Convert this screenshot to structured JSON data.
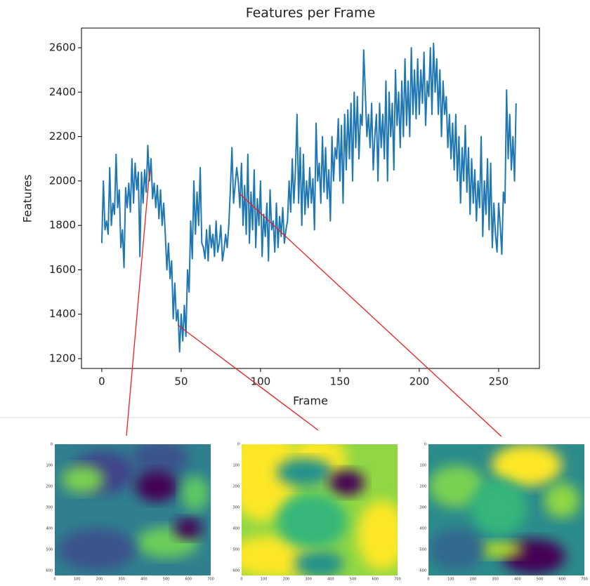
{
  "chart_data": {
    "type": "line",
    "title": "Features per Frame",
    "x_label": "Frame",
    "y_label": "Features",
    "color": "#1f77b4",
    "xlim": [
      -12.8,
      275.7
    ],
    "ylim": [
      1155.8,
      2688.5
    ],
    "xticks": [
      0,
      50,
      100,
      150,
      200,
      250
    ],
    "yticks": [
      1200,
      1400,
      1600,
      1800,
      2000,
      2200,
      2400,
      2600
    ],
    "values": [
      1720,
      2000,
      1780,
      1820,
      1760,
      2060,
      1800,
      1900,
      1850,
      2120,
      1880,
      1960,
      1700,
      1780,
      1610,
      1970,
      1880,
      1990,
      1860,
      2100,
      1900,
      2080,
      1960,
      2040,
      1660,
      2040,
      1900,
      2050,
      1950,
      2160,
      2000,
      2100,
      1920,
      1990,
      1880,
      1980,
      1830,
      1960,
      1800,
      1900,
      1760,
      1600,
      1720,
      1560,
      1640,
      1380,
      1540,
      1370,
      1420,
      1230,
      1400,
      1280,
      1440,
      1300,
      1600,
      1500,
      1820,
      1650,
      2000,
      1760,
      1950,
      1800,
      2060,
      1720,
      1700,
      1650,
      1780,
      1640,
      1800,
      1700,
      1760,
      1660,
      1820,
      1680,
      1720,
      1800,
      1640,
      1690,
      1760,
      1700,
      1800,
      1960,
      2150,
      1900,
      1980,
      2060,
      2000,
      1880,
      2080,
      1800,
      1980,
      1760,
      2120,
      1720,
      1950,
      1780,
      2050,
      1700,
      1920,
      1800,
      2000,
      1660,
      1850,
      1750,
      1900,
      1640,
      1960,
      1780,
      1820,
      1680,
      1900,
      1700,
      1840,
      1750,
      1880,
      1720,
      1780,
      1820,
      2000,
      1860,
      2100,
      1900,
      2050,
      2300,
      1900,
      2150,
      1800,
      2120,
      1850,
      2000,
      1880,
      2060,
      1900,
      2010,
      1780,
      2260,
      2000,
      2080,
      1900,
      2200,
      1950,
      2150,
      1920,
      2050,
      1820,
      2200,
      2000,
      2150,
      2100,
      2280,
      2000,
      2250,
      1900,
      2300,
      2050,
      2320,
      2100,
      2350,
      2000,
      2400,
      2150,
      2380,
      2100,
      2300,
      2250,
      2590,
      2400,
      2200,
      2300,
      2150,
      2350,
      2050,
      2200,
      2300,
      2000,
      2350,
      2150,
      2300,
      2100,
      2450,
      2000,
      2400,
      2200,
      2350,
      2050,
      2500,
      2250,
      2400,
      2150,
      2450,
      2200,
      2550,
      2250,
      2450,
      2200,
      2600,
      2300,
      2500,
      2280,
      2550,
      2300,
      2500,
      2350,
      2580,
      2250,
      2450,
      2380,
      2600,
      2300,
      2620,
      2400,
      2550,
      2300,
      2500,
      2200,
      2450,
      2300,
      2380,
      2150,
      2300,
      2100,
      2260,
      2050,
      2300,
      2000,
      2200,
      1900,
      2150,
      2000,
      2250,
      1950,
      2150,
      1850,
      2100,
      1900,
      2050,
      1820,
      2000,
      1880,
      2200,
      1750,
      2000,
      1850,
      2100,
      1780,
      2080,
      1700,
      1900,
      1760,
      1680,
      1900,
      1800,
      1670,
      1950,
      1900,
      2410,
      2100,
      2300,
      2050,
      2200,
      2000,
      2350
    ]
  },
  "images": {
    "xticks": [
      "0",
      "100",
      "200",
      "300",
      "400",
      "500",
      "600",
      "700"
    ],
    "yticks": [
      "0",
      "100",
      "200",
      "300",
      "400",
      "500",
      "600"
    ]
  }
}
